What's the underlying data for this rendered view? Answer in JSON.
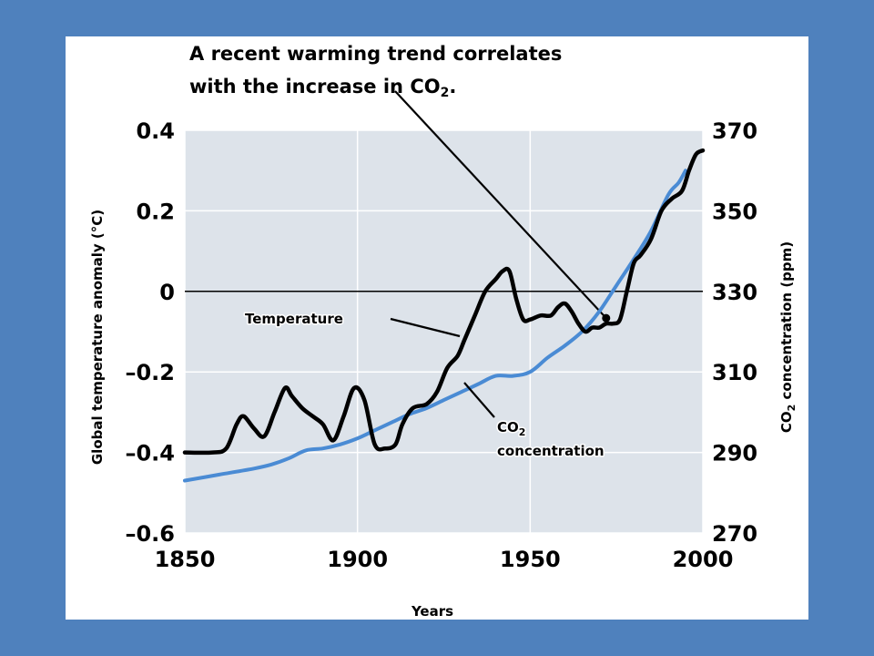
{
  "chart_data": {
    "type": "line",
    "title": [
      "A recent warming trend correlates",
      "with the increase in CO",
      "2",
      "."
    ],
    "xlabel": "Years",
    "ylabel_left": "Global temperature anomaly (°C)",
    "ylabel_right": [
      "CO",
      "2",
      " concentration (ppm)"
    ],
    "xlim": [
      1850,
      2000
    ],
    "ylim_left": [
      -0.6,
      0.4
    ],
    "ylim_right": [
      270,
      370
    ],
    "x_ticks": [
      "1850",
      "1900",
      "1950",
      "2000"
    ],
    "y_ticks_left": [
      "0.4",
      "0.2",
      "0",
      "–0.2",
      "–0.4",
      "–0.6"
    ],
    "y_ticks_right": [
      "370",
      "350",
      "330",
      "310",
      "290",
      "270"
    ],
    "grid": true,
    "zero_line": 0,
    "series": [
      {
        "name": "Temperature",
        "axis": "left",
        "color": "#000000",
        "x": [
          1850,
          1858,
          1862,
          1865,
          1867,
          1870,
          1873,
          1876,
          1879,
          1881,
          1884,
          1887,
          1890,
          1893,
          1896,
          1899,
          1902,
          1905,
          1908,
          1911,
          1913,
          1916,
          1920,
          1923,
          1926,
          1929,
          1931,
          1934,
          1937,
          1940,
          1942,
          1944,
          1946,
          1948,
          1950,
          1953,
          1956,
          1958,
          1960,
          1962,
          1964,
          1966,
          1968,
          1970,
          1972,
          1974,
          1976,
          1978,
          1980,
          1982,
          1985,
          1988,
          1991,
          1994,
          1996,
          1998,
          2000
        ],
        "y": [
          -0.4,
          -0.4,
          -0.39,
          -0.33,
          -0.31,
          -0.34,
          -0.36,
          -0.3,
          -0.24,
          -0.26,
          -0.29,
          -0.31,
          -0.33,
          -0.37,
          -0.31,
          -0.24,
          -0.27,
          -0.38,
          -0.39,
          -0.38,
          -0.33,
          -0.29,
          -0.28,
          -0.25,
          -0.19,
          -0.16,
          -0.12,
          -0.06,
          0.0,
          0.03,
          0.05,
          0.05,
          -0.02,
          -0.07,
          -0.07,
          -0.06,
          -0.06,
          -0.04,
          -0.03,
          -0.05,
          -0.08,
          -0.1,
          -0.09,
          -0.09,
          -0.08,
          -0.08,
          -0.07,
          0.0,
          0.07,
          0.09,
          0.13,
          0.2,
          0.23,
          0.25,
          0.3,
          0.34,
          0.35
        ]
      },
      {
        "name": "CO₂ concentration",
        "axis": "right",
        "color": "#4a8bd4",
        "x": [
          1850,
          1860,
          1870,
          1875,
          1880,
          1885,
          1890,
          1895,
          1900,
          1905,
          1910,
          1915,
          1920,
          1925,
          1930,
          1935,
          1940,
          1945,
          1950,
          1955,
          1960,
          1965,
          1970,
          1975,
          1980,
          1985,
          1990,
          1993,
          1995
        ],
        "y": [
          283,
          284.5,
          286,
          287,
          288.5,
          290.5,
          291,
          292,
          293.5,
          295.5,
          297.5,
          299.5,
          301,
          303,
          305,
          307,
          309,
          309,
          310,
          313.5,
          316.5,
          320,
          325,
          331.5,
          338,
          345,
          354,
          357,
          360
        ]
      }
    ],
    "annotations": {
      "series_labels": [
        "Temperature",
        [
          "CO",
          "2"
        ],
        "concentration"
      ],
      "callout_point_year": 1972
    }
  }
}
